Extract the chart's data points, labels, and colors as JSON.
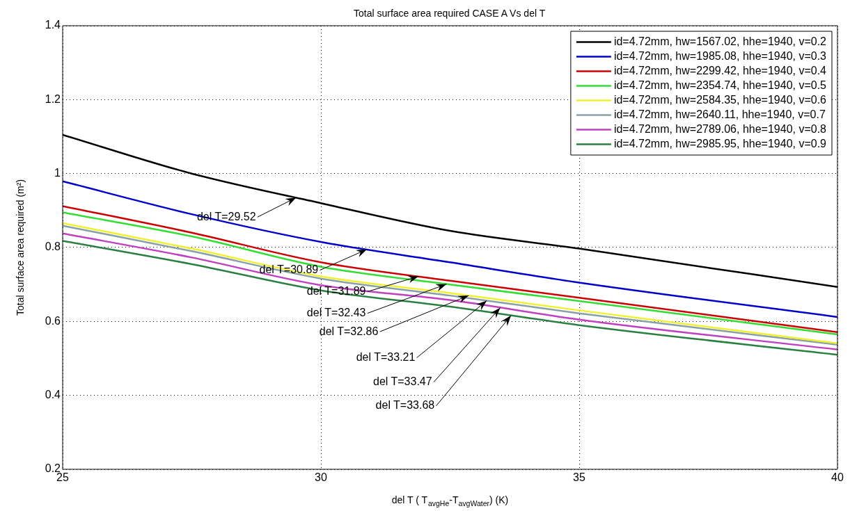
{
  "chart_data": {
    "type": "line",
    "title": "Total surface area required CASE A Vs del T",
    "xlabel": "del T ( T$_{avgHe}$-T$_{avgWater}$) (K)",
    "ylabel": "Total surface area required (m²)",
    "x": [
      25,
      27.5,
      30,
      32.5,
      35,
      40
    ],
    "series": [
      {
        "name": "id=4.72mm, hw=1567.02, hhe=1940, v=0.2",
        "color": "#000000",
        "values": [
          1.105,
          1.0,
          0.92,
          0.845,
          0.797,
          0.693
        ]
      },
      {
        "name": "id=4.72mm, hw=1985.08, hhe=1940, v=0.3",
        "color": "#0000cc",
        "values": [
          0.979,
          0.89,
          0.815,
          0.76,
          0.705,
          0.612
        ]
      },
      {
        "name": "id=4.72mm, hw=2299.42, hhe=1940, v=0.4",
        "color": "#cc0000",
        "values": [
          0.912,
          0.84,
          0.76,
          0.71,
          0.664,
          0.571
        ]
      },
      {
        "name": "id=4.72mm, hw=2354.74, hhe=1940, v=0.5",
        "color": "#33dd33",
        "values": [
          0.895,
          0.83,
          0.748,
          0.7,
          0.655,
          0.565
        ]
      },
      {
        "name": "id=4.72mm, hw=2584.35, hhe=1940, v=0.6",
        "color": "#f0f030",
        "values": [
          0.866,
          0.797,
          0.722,
          0.677,
          0.63,
          0.541
        ]
      },
      {
        "name": "id=4.72mm, hw=2640.11, hhe=1940, v=0.7",
        "color": "#88a0a8",
        "values": [
          0.859,
          0.79,
          0.716,
          0.67,
          0.622,
          0.537
        ]
      },
      {
        "name": "id=4.72mm, hw=2789.06, hhe=1940, v=0.8",
        "color": "#c040c0",
        "values": [
          0.838,
          0.773,
          0.698,
          0.658,
          0.605,
          0.524
        ]
      },
      {
        "name": "id=4.72mm, hw=2985.95, hhe=1940, v=0.9",
        "color": "#2a8040",
        "values": [
          0.818,
          0.755,
          0.684,
          0.64,
          0.59,
          0.51
        ]
      }
    ],
    "annotations": [
      {
        "text": "del T=29.52",
        "x": 29.52,
        "y": 0.935
      },
      {
        "text": "del T=30.89",
        "x": 30.89,
        "y": 0.795
      },
      {
        "text": "del T=31.89",
        "x": 31.89,
        "y": 0.722
      },
      {
        "text": "del T=32.43",
        "x": 32.43,
        "y": 0.701
      },
      {
        "text": "del T=32.86",
        "x": 32.86,
        "y": 0.67
      },
      {
        "text": "del T=33.21",
        "x": 33.21,
        "y": 0.656
      },
      {
        "text": "del T=33.47",
        "x": 33.47,
        "y": 0.637
      },
      {
        "text": "del T=33.68",
        "x": 33.68,
        "y": 0.616
      }
    ],
    "xlim": [
      25,
      40
    ],
    "xticks": [
      25,
      30,
      35,
      40
    ],
    "ylim": [
      0.2,
      1.4
    ],
    "yticks": [
      0.2,
      0.4,
      0.6,
      0.8,
      1,
      1.2,
      1.4
    ],
    "grid": true,
    "legend": "top right",
    "marker": "none",
    "line_style": "solid"
  }
}
